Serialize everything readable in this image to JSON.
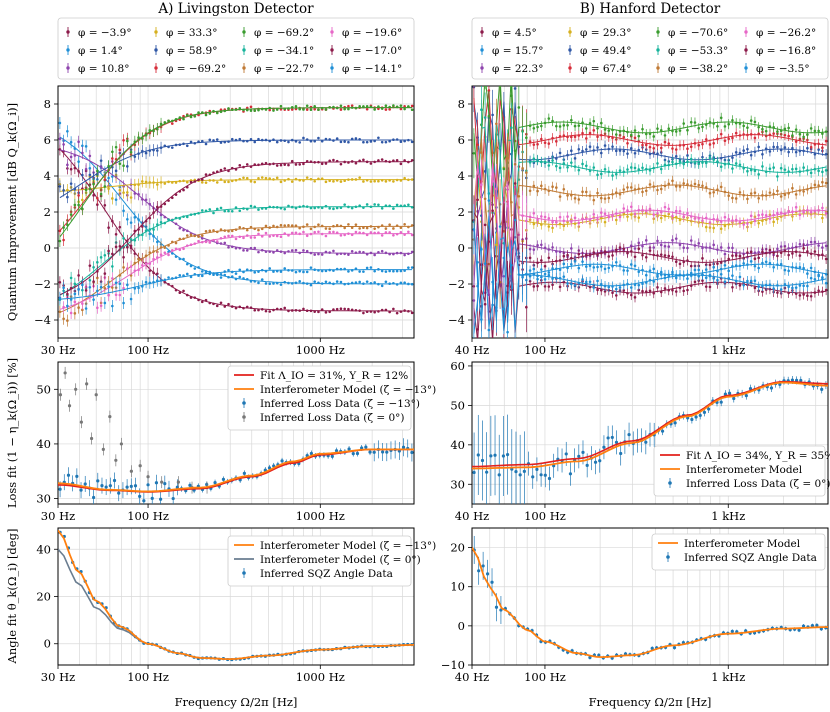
{
  "titles": {
    "left": "A) Livingston Detector",
    "right": "B) Hanford Detector"
  },
  "colors": [
    "#8c1a4a",
    "#1f8fd6",
    "#8e44ad",
    "#d6b01f",
    "#2f57a6",
    "#d62d3a",
    "#3a9c2f",
    "#17b39b",
    "#c07a35",
    "#e667c7"
  ],
  "legend_left": [
    {
      "label": "φ = −3.9°"
    },
    {
      "label": "φ = 1.4°"
    },
    {
      "label": "φ = 10.8°"
    },
    {
      "label": "φ = 33.3°"
    },
    {
      "label": "φ = 58.9°"
    },
    {
      "label": "φ = −69.2°"
    },
    {
      "label": "φ = −69.2°"
    },
    {
      "label": "φ = −34.1°"
    },
    {
      "label": "φ = −22.7°"
    },
    {
      "label": "φ = −19.6°"
    },
    {
      "label": "φ = −17.0°"
    },
    {
      "label": "φ = −14.1°"
    }
  ],
  "legend_right": [
    {
      "label": "φ = 4.5°"
    },
    {
      "label": "φ = 15.7°"
    },
    {
      "label": "φ = 22.3°"
    },
    {
      "label": "φ = 29.3°"
    },
    {
      "label": "φ = 49.4°"
    },
    {
      "label": "φ = 67.4°"
    },
    {
      "label": "φ = −70.6°"
    },
    {
      "label": "φ = −53.3°"
    },
    {
      "label": "φ = −38.2°"
    },
    {
      "label": "φ = −26.2°"
    },
    {
      "label": "φ = −16.8°"
    },
    {
      "label": "φ = −3.5°"
    }
  ],
  "axes": {
    "top_ylabel": "Quantum Improvement [dB Q_k(Ω_i)]",
    "mid_ylabel": "Loss fit (1 − η_k(Ω_i)) [%]",
    "bot_ylabel": "Angle fit θ_k(Ω_i) [deg]",
    "xlabel": "Frequency Ω/2π [Hz]",
    "left_xticks": [
      "30 Hz",
      "100 Hz",
      "1000 Hz"
    ],
    "right_xticks": [
      "40 Hz",
      "100 Hz",
      "1 kHz"
    ],
    "top_yticks": [
      "8",
      "6",
      "4",
      "2",
      "0",
      "−2",
      "−4"
    ],
    "mid_left_yticks": [
      "50",
      "40",
      "30"
    ],
    "mid_right_yticks": [
      "60",
      "50",
      "40",
      "30"
    ],
    "bot_left_yticks": [
      "40",
      "20",
      "0"
    ],
    "bot_right_yticks": [
      "20",
      "10",
      "0",
      "−10"
    ]
  },
  "mid_legend_left": [
    {
      "label": "Fit Λ_IO = 31%, Υ_R = 12%"
    },
    {
      "label": "Interferometer Model (ζ = −13°)"
    },
    {
      "label": "Inferred Loss Data (ζ = −13°)"
    },
    {
      "label": "Inferred Loss Data (ζ = 0°)"
    }
  ],
  "mid_legend_right": [
    {
      "label": "Fit Λ_IO = 34%, Υ_R = 35%"
    },
    {
      "label": "Interferometer Model"
    },
    {
      "label": "Inferred Loss Data (ζ = 0°)"
    }
  ],
  "bot_legend_left": [
    {
      "label": "Interferometer Model (ζ = −13°)"
    },
    {
      "label": "Interferometer Model (ζ = 0°)"
    },
    {
      "label": "Inferred SQZ Angle Data"
    }
  ],
  "bot_legend_right": [
    {
      "label": "Interferometer Model"
    },
    {
      "label": "Inferred SQZ Angle Data"
    }
  ],
  "chart_data": [
    {
      "type": "scatter",
      "panel": "left-top",
      "title": "A) Livingston Detector",
      "xscale": "log",
      "xlim": [
        30,
        3500
      ],
      "ylim": [
        -5,
        9
      ],
      "xlabel": "",
      "ylabel": "Quantum Improvement [dB Q_k(Ω_i)]",
      "series": [
        {
          "name": "φ=−3.9°",
          "start": 8.0,
          "plateau": -3.5,
          "f0": 55
        },
        {
          "name": "φ=1.4°",
          "start": 7.5,
          "plateau": -2.0,
          "f0": 70
        },
        {
          "name": "φ=10.8°",
          "start": 6.0,
          "plateau": -0.3,
          "f0": 90
        },
        {
          "name": "φ=33.3°",
          "start": 3.0,
          "plateau": 3.8,
          "f0": 60
        },
        {
          "name": "φ=58.9°",
          "start": 1.0,
          "plateau": 6.0,
          "f0": 40
        },
        {
          "name": "φ=−69.2°",
          "start": -2.0,
          "plateau": 7.8,
          "f0": 45
        },
        {
          "name": "φ=−69.2°",
          "start": -3.0,
          "plateau": 7.8,
          "f0": 42
        },
        {
          "name": "φ=−34.1°",
          "start": -4.0,
          "plateau": 2.3,
          "f0": 55
        },
        {
          "name": "φ=−22.7°",
          "start": -4.5,
          "plateau": 1.2,
          "f0": 65
        },
        {
          "name": "φ=−19.6°",
          "start": -4.0,
          "plateau": 0.8,
          "f0": 75
        },
        {
          "name": "φ=−17.0°",
          "start": -3.5,
          "plateau": 4.8,
          "f0": 80
        },
        {
          "name": "φ=−14.1°",
          "start": -3.0,
          "plateau": -1.2,
          "f0": 90
        }
      ]
    },
    {
      "type": "scatter",
      "panel": "right-top",
      "title": "B) Hanford Detector",
      "xscale": "log",
      "xlim": [
        40,
        3500
      ],
      "ylim": [
        -5,
        9
      ],
      "series": [
        {
          "name": "φ=4.5°",
          "level": -2.2
        },
        {
          "name": "φ=15.7°",
          "level": -1.8
        },
        {
          "name": "φ=22.3°",
          "level": 0.0
        },
        {
          "name": "φ=29.3°",
          "level": 1.6
        },
        {
          "name": "φ=49.4°",
          "level": 5.2
        },
        {
          "name": "φ=67.4°",
          "level": 6.0
        },
        {
          "name": "φ=−70.6°",
          "level": 6.7
        },
        {
          "name": "φ=−53.3°",
          "level": 4.5
        },
        {
          "name": "φ=−38.2°",
          "level": 3.2
        },
        {
          "name": "φ=−26.2°",
          "level": 1.8
        },
        {
          "name": "φ=−16.8°",
          "level": -0.5
        },
        {
          "name": "φ=−3.5°",
          "level": -1.2
        }
      ]
    },
    {
      "type": "line",
      "panel": "left-mid",
      "xscale": "log",
      "xlim": [
        30,
        3500
      ],
      "ylim": [
        29,
        55
      ],
      "ylabel": "Loss fit (1 − η_k(Ω_i)) [%]",
      "series": [
        {
          "name": "Fit Λ_IO = 31%, Υ_R = 12%",
          "x": [
            30,
            60,
            100,
            200,
            400,
            700,
            1000,
            2000,
            3500
          ],
          "y": [
            32.5,
            31.5,
            31.2,
            31.8,
            34,
            36.5,
            38,
            39,
            39
          ]
        },
        {
          "name": "Interferometer Model (ζ = −13°)",
          "x": [
            30,
            60,
            100,
            200,
            400,
            700,
            1000,
            2000,
            3500
          ],
          "y": [
            32.8,
            31.6,
            31.3,
            32,
            34.2,
            36.8,
            38.2,
            39,
            39
          ]
        },
        {
          "name": "Inferred Loss Data (ζ = 0°)",
          "x": [
            31,
            33,
            35,
            38,
            41,
            44,
            47,
            50,
            55,
            60,
            65,
            70,
            80,
            90,
            100,
            120,
            150,
            180,
            220
          ],
          "y": [
            49,
            53,
            47,
            50,
            44,
            51,
            41,
            49,
            39,
            45,
            37,
            40,
            35,
            36,
            34,
            33,
            33,
            32,
            32
          ]
        }
      ]
    },
    {
      "type": "line",
      "panel": "right-mid",
      "xscale": "log",
      "xlim": [
        40,
        3500
      ],
      "ylim": [
        25,
        61
      ],
      "series": [
        {
          "name": "Fit Λ_IO = 34%, Υ_R = 35%",
          "x": [
            40,
            80,
            150,
            300,
            600,
            1000,
            2000,
            3500
          ],
          "y": [
            34.5,
            35,
            36.5,
            41,
            47.5,
            52.5,
            56,
            55.5
          ]
        },
        {
          "name": "Interferometer Model",
          "x": [
            40,
            80,
            150,
            300,
            600,
            1000,
            2000,
            3500
          ],
          "y": [
            34,
            34.3,
            35.8,
            40.5,
            47.2,
            52.2,
            55.8,
            55
          ]
        }
      ]
    },
    {
      "type": "line",
      "panel": "left-bot",
      "xscale": "log",
      "xlim": [
        30,
        3500
      ],
      "ylim": [
        -9,
        49
      ],
      "xlabel": "Frequency Ω/2π [Hz]",
      "ylabel": "Angle fit θ_k(Ω_i) [deg]",
      "series": [
        {
          "name": "Interferometer Model (ζ = −13°)",
          "x": [
            30,
            40,
            50,
            70,
            100,
            150,
            200,
            300,
            500,
            1000,
            2000,
            3500
          ],
          "y": [
            48,
            30,
            18,
            7,
            0,
            -4,
            -6,
            -6.5,
            -5,
            -2.5,
            -1,
            -0.5
          ]
        },
        {
          "name": "Interferometer Model (ζ = 0°)",
          "x": [
            30,
            40,
            50,
            70,
            100,
            150,
            200,
            300,
            500,
            1000,
            2000,
            3500
          ],
          "y": [
            40,
            25,
            15,
            6,
            0,
            -4,
            -6,
            -6.5,
            -5,
            -2.5,
            -1,
            -0.5
          ]
        }
      ]
    },
    {
      "type": "line",
      "panel": "right-bot",
      "xscale": "log",
      "xlim": [
        40,
        3500
      ],
      "ylim": [
        -10,
        25
      ],
      "xlabel": "Frequency Ω/2π [Hz]",
      "series": [
        {
          "name": "Interferometer Model",
          "x": [
            40,
            50,
            60,
            80,
            100,
            150,
            200,
            300,
            500,
            1000,
            2000,
            3500
          ],
          "y": [
            20,
            10,
            4,
            -1,
            -4,
            -7,
            -8,
            -7.5,
            -5,
            -2,
            -0.7,
            -0.3
          ]
        }
      ]
    }
  ]
}
